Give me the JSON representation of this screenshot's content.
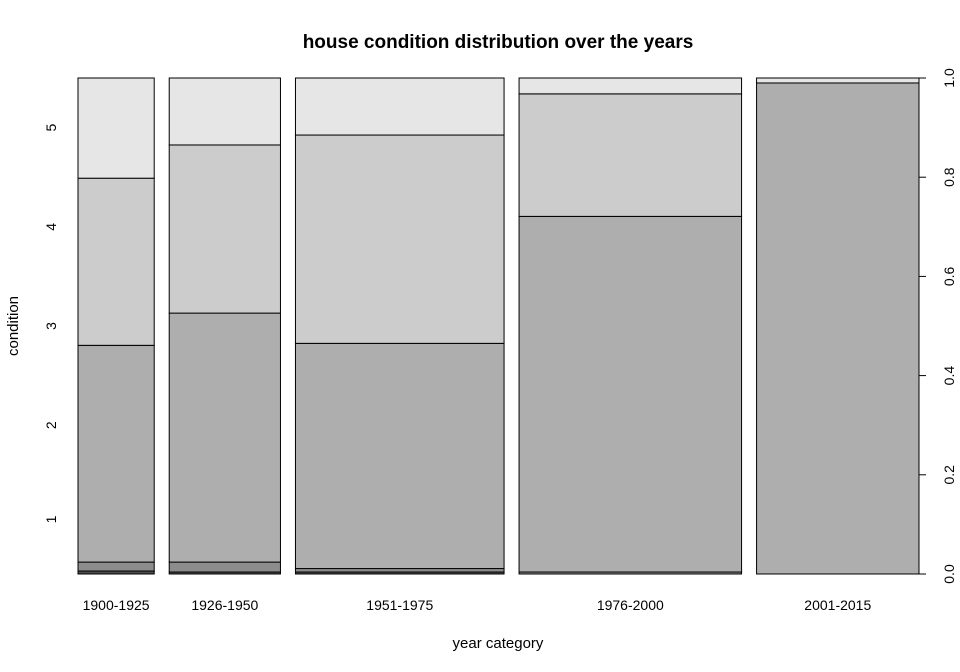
{
  "chart_data": {
    "type": "spineplot",
    "title": "house condition distribution over the years",
    "xlabel": "year category",
    "ylabel": "condition",
    "categories": [
      "1900-1925",
      "1926-1950",
      "1951-1975",
      "1976-2000",
      "2001-2015"
    ],
    "category_widths": [
      0.137,
      0.2,
      0.375,
      0.4,
      0.292
    ],
    "condition_levels": [
      "1",
      "2",
      "3",
      "4",
      "5"
    ],
    "left_axis_ticks": [
      "1",
      "2",
      "3",
      "4",
      "5"
    ],
    "right_axis_ticks": [
      "0.0",
      "0.2",
      "0.4",
      "0.6",
      "0.8",
      "1.0"
    ],
    "ylim": [
      0,
      1
    ],
    "series": [
      {
        "name": "1",
        "values": [
          0.006,
          0.004,
          0.004,
          0.0,
          0.0
        ]
      },
      {
        "name": "2",
        "values": [
          0.018,
          0.02,
          0.007,
          0.004,
          0.0
        ]
      },
      {
        "name": "3",
        "values": [
          0.437,
          0.502,
          0.454,
          0.717,
          0.99
        ]
      },
      {
        "name": "4",
        "values": [
          0.337,
          0.339,
          0.42,
          0.247,
          0.0
        ]
      },
      {
        "name": "5",
        "values": [
          0.202,
          0.135,
          0.115,
          0.032,
          0.01
        ]
      }
    ],
    "fill_colors": [
      "#4d4d4d",
      "#8c8c8c",
      "#aeaeae",
      "#cccccc",
      "#e6e6e6"
    ]
  }
}
